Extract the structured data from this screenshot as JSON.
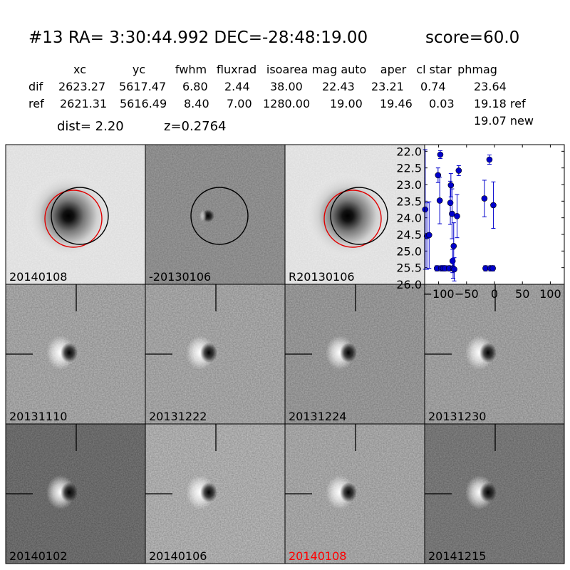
{
  "header": {
    "title": "#13   RA= 3:30:44.992 DEC=-28:48:19.00",
    "score": "score=60.0"
  },
  "stats_table": {
    "columns": [
      "xc",
      "yc",
      "fwhm",
      "fluxrad",
      "isoarea",
      "mag auto",
      "aper",
      "cl star",
      "phmag"
    ],
    "rows": [
      {
        "label": "dif",
        "values": [
          "2623.27",
          "5617.47",
          "6.80",
          "2.44",
          "38.00",
          "22.43",
          "23.21",
          "0.74",
          "23.64"
        ]
      },
      {
        "label": "ref",
        "values": [
          "2621.31",
          "5616.49",
          "8.40",
          "7.00",
          "1280.00",
          "19.00",
          "19.46",
          "0.03",
          "19.18 ref"
        ]
      }
    ],
    "extra_phmag": "19.07 new"
  },
  "dist_text": "dist=  2.20",
  "z_text": "z=0.2764",
  "stamps": [
    {
      "label": "20140108",
      "type": "galaxy",
      "circles": [
        "red",
        "black"
      ],
      "label_color": "#000000"
    },
    {
      "label": "-20130106",
      "type": "diff_mid",
      "circles": [
        "black"
      ],
      "label_color": "#000000"
    },
    {
      "label": "R20130106",
      "type": "galaxy",
      "circles": [
        "red",
        "black"
      ],
      "label_color": "#000000"
    },
    {
      "label": "20131110",
      "type": "diff",
      "bg": 178,
      "label_color": "#000000"
    },
    {
      "label": "20131222",
      "type": "diff",
      "bg": 178,
      "label_color": "#000000"
    },
    {
      "label": "20131224",
      "type": "diff",
      "bg": 160,
      "label_color": "#000000"
    },
    {
      "label": "20131230",
      "type": "diff",
      "bg": 172,
      "label_color": "#000000"
    },
    {
      "label": "20140102",
      "type": "diff",
      "bg": 105,
      "label_color": "#000000"
    },
    {
      "label": "20140106",
      "type": "diff",
      "bg": 190,
      "label_color": "#000000"
    },
    {
      "label": "20140108",
      "type": "diff",
      "bg": 180,
      "label_color": "#ff0000"
    },
    {
      "label": "20141215",
      "type": "diff",
      "bg": 120,
      "label_color": "#000000"
    }
  ],
  "chart_data": {
    "type": "scatter",
    "xlim": [
      -125,
      125
    ],
    "ylim": [
      26.0,
      21.8
    ],
    "y_inverted": true,
    "x_ticks": [
      -100,
      -50,
      0,
      50,
      100
    ],
    "x_tick_labels": [
      "−100",
      "−50",
      "0",
      "50",
      "100"
    ],
    "y_ticks": [
      22.0,
      22.5,
      23.0,
      23.5,
      24.0,
      24.5,
      25.0,
      25.5,
      26.0
    ],
    "y_tick_labels": [
      "22.0",
      "22.5",
      "23.0",
      "23.5",
      "24.0",
      "24.5",
      "25.0",
      "25.5",
      "26.0"
    ],
    "marker_color": "#0000cc",
    "points": [
      {
        "x": -124,
        "y": 23.75,
        "err": 1.8
      },
      {
        "x": -121,
        "y": 24.55,
        "err": 1.0
      },
      {
        "x": -117,
        "y": 24.52,
        "err": 1.0
      },
      {
        "x": -103,
        "y": 25.52,
        "err": 0.08
      },
      {
        "x": -101,
        "y": 22.72,
        "err": 0.22
      },
      {
        "x": -98,
        "y": 23.48,
        "err": 0.7
      },
      {
        "x": -97,
        "y": 22.1,
        "err": 0.12
      },
      {
        "x": -95,
        "y": 25.52,
        "err": 0.08
      },
      {
        "x": -92,
        "y": 25.52,
        "err": 0.08
      },
      {
        "x": -89,
        "y": 25.52,
        "err": 0.08
      },
      {
        "x": -81,
        "y": 25.52,
        "err": 0.08
      },
      {
        "x": -79,
        "y": 23.55,
        "err": 0.65
      },
      {
        "x": -78,
        "y": 23.02,
        "err": 0.35
      },
      {
        "x": -76,
        "y": 23.88,
        "err": 0.75
      },
      {
        "x": -75,
        "y": 25.3,
        "err": 0.35
      },
      {
        "x": -74,
        "y": 25.52,
        "err": 0.3
      },
      {
        "x": -73,
        "y": 24.85,
        "err": 0.7
      },
      {
        "x": -72,
        "y": 25.55,
        "err": 0.35
      },
      {
        "x": -67,
        "y": 23.95,
        "err": 0.65
      },
      {
        "x": -64,
        "y": 22.58,
        "err": 0.15
      },
      {
        "x": -18,
        "y": 23.42,
        "err": 0.55
      },
      {
        "x": -16,
        "y": 25.52,
        "err": 0.08
      },
      {
        "x": -9,
        "y": 22.25,
        "err": 0.14
      },
      {
        "x": -7,
        "y": 25.52,
        "err": 0.08
      },
      {
        "x": -3,
        "y": 25.52,
        "err": 0.08
      },
      {
        "x": -2,
        "y": 23.62,
        "err": 0.7
      }
    ]
  }
}
